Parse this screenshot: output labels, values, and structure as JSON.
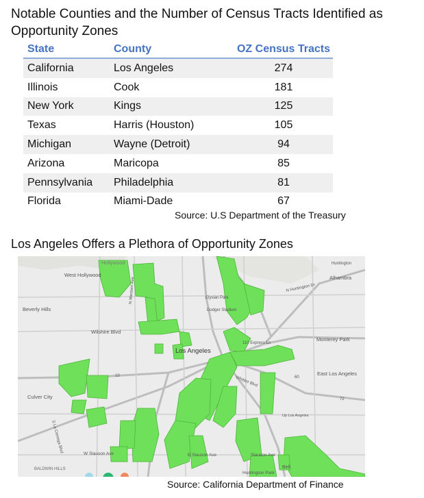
{
  "title": "Notable Counties and the Number of Census Tracts Identified as Opportunity Zones",
  "table": {
    "headers": {
      "state": "State",
      "county": "County",
      "tracts": "OZ Census Tracts"
    },
    "rows": [
      {
        "state": "California",
        "county": "Los Angeles",
        "tracts": "274"
      },
      {
        "state": "Illinois",
        "county": "Cook",
        "tracts": "181"
      },
      {
        "state": "New York",
        "county": "Kings",
        "tracts": "125"
      },
      {
        "state": "Texas",
        "county": "Harris (Houston)",
        "tracts": "105"
      },
      {
        "state": "Michigan",
        "county": "Wayne (Detroit)",
        "tracts": "94"
      },
      {
        "state": "Arizona",
        "county": "Maricopa",
        "tracts": "85"
      },
      {
        "state": "Pennsylvania",
        "county": "Philadelphia",
        "tracts": "81"
      },
      {
        "state": "Florida",
        "county": "Miami-Dade",
        "tracts": "67"
      }
    ],
    "source": "Source: U.S Department of the Treasury"
  },
  "map_section": {
    "title": "Los Angeles Offers a Plethora of Opportunity Zones",
    "source": "Source: California Department of Finance",
    "zone_color": "#6fe05a",
    "labels": {
      "west_hollywood": "West Hollywood",
      "hollywood": "Hollywood",
      "beverly_hills": "Beverly Hills",
      "wilshire": "Wilshire Blvd",
      "los_angeles": "Los Angeles",
      "elysian_park": "Elysian Park",
      "dodger_stadium": "Dodger Stadium",
      "alhambra": "Alhambra",
      "huntington_top": "Huntington",
      "n_huntington": "N Huntington Dr",
      "monterey_park": "Monterey Park",
      "east_los_angeles": "East Los Angeles",
      "culver_city": "Culver City",
      "w_slauson": "W Slauson Ave",
      "e_slauson": "E Slauson Ave",
      "slauson": "Slauson Ave",
      "baldwin_hills": "BALDWIN HILLS",
      "huntington_park": "Huntington Park",
      "bell": "Bell",
      "vernon": "Up Los Angeles",
      "whittier": "Whittier Blvd",
      "n_western": "N Western Ave",
      "s_la_cienega": "S La Cienega Blvd",
      "express_ln": "110 Express Ln",
      "route_10": "10",
      "route_60": "60",
      "route_72": "72"
    }
  }
}
